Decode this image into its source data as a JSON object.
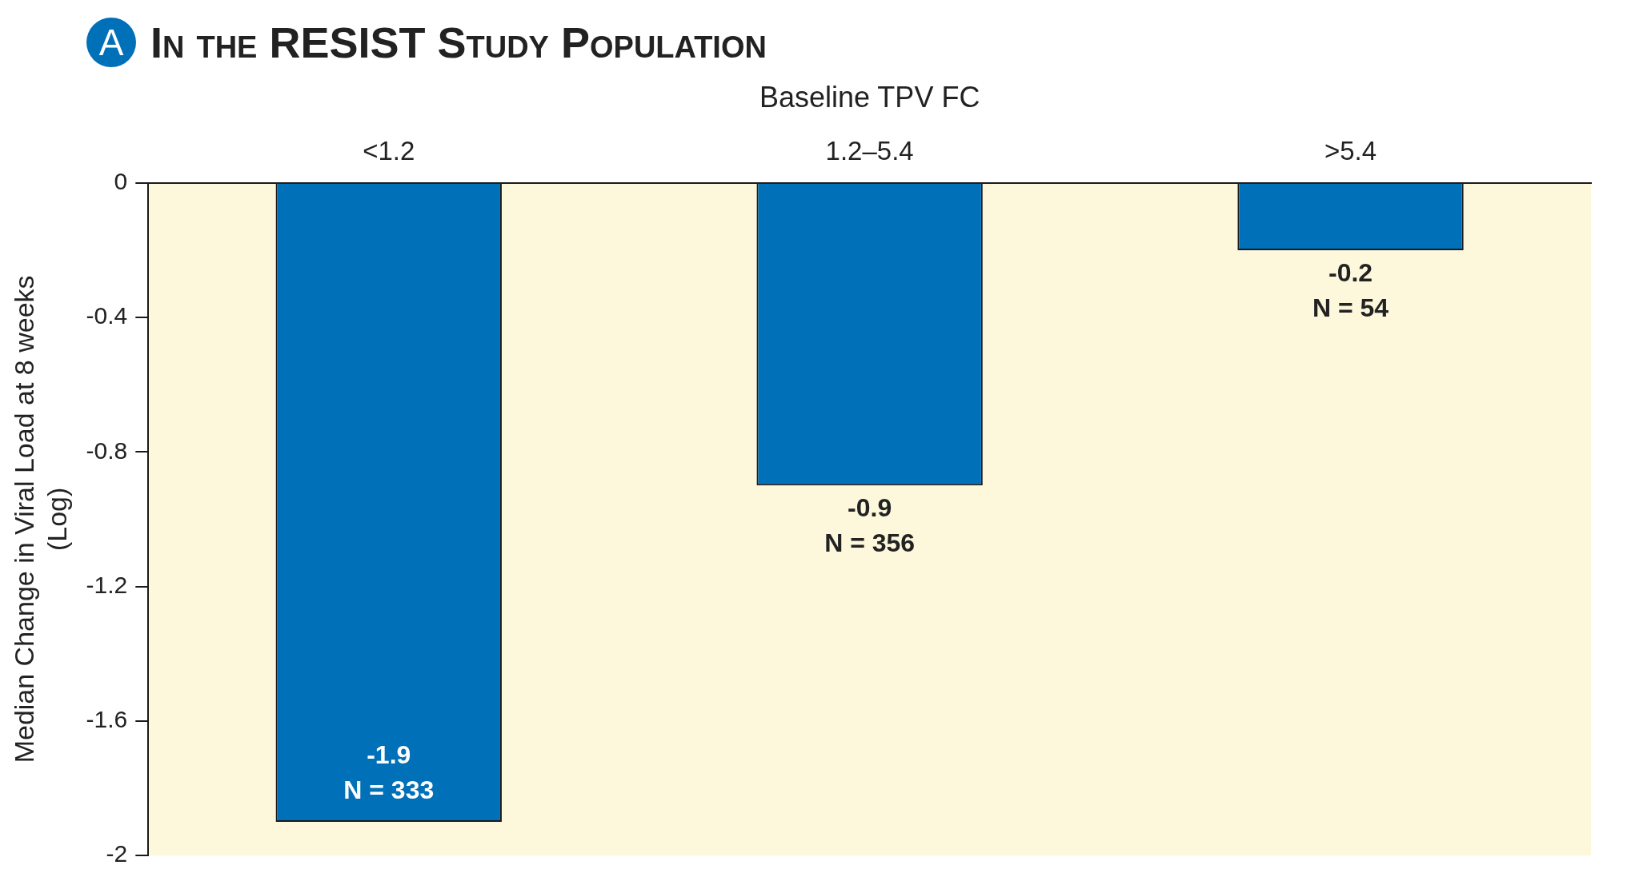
{
  "chart_data": {
    "type": "bar",
    "title": "In the RESIST Study Population",
    "xlabel": "Baseline TPV FC",
    "ylabel": "Median Change in Viral Load at 8 weeks\n(Log)",
    "categories": [
      "<1.2",
      "1.2–5.4",
      ">5.4"
    ],
    "values": [
      -1.9,
      -0.9,
      -0.2
    ],
    "color": "#0070b8",
    "value_labels": [
      "-1.9",
      "-0.9",
      "-0.2"
    ],
    "annotations": [
      "A",
      {
        "text": "N = 333",
        "x": "<1.2",
        "y": -1.9
      },
      {
        "text": "N = 356",
        "x": "1.2–5.4",
        "y": -0.9
      },
      {
        "text": "N = 54",
        "x": ">5.4",
        "y": -0.2
      }
    ],
    "ylim": [
      -2,
      0
    ],
    "yticks": [
      0,
      -0.4,
      -0.8,
      -1.2,
      -1.6,
      -2
    ],
    "grid": false,
    "legend": false
  }
}
